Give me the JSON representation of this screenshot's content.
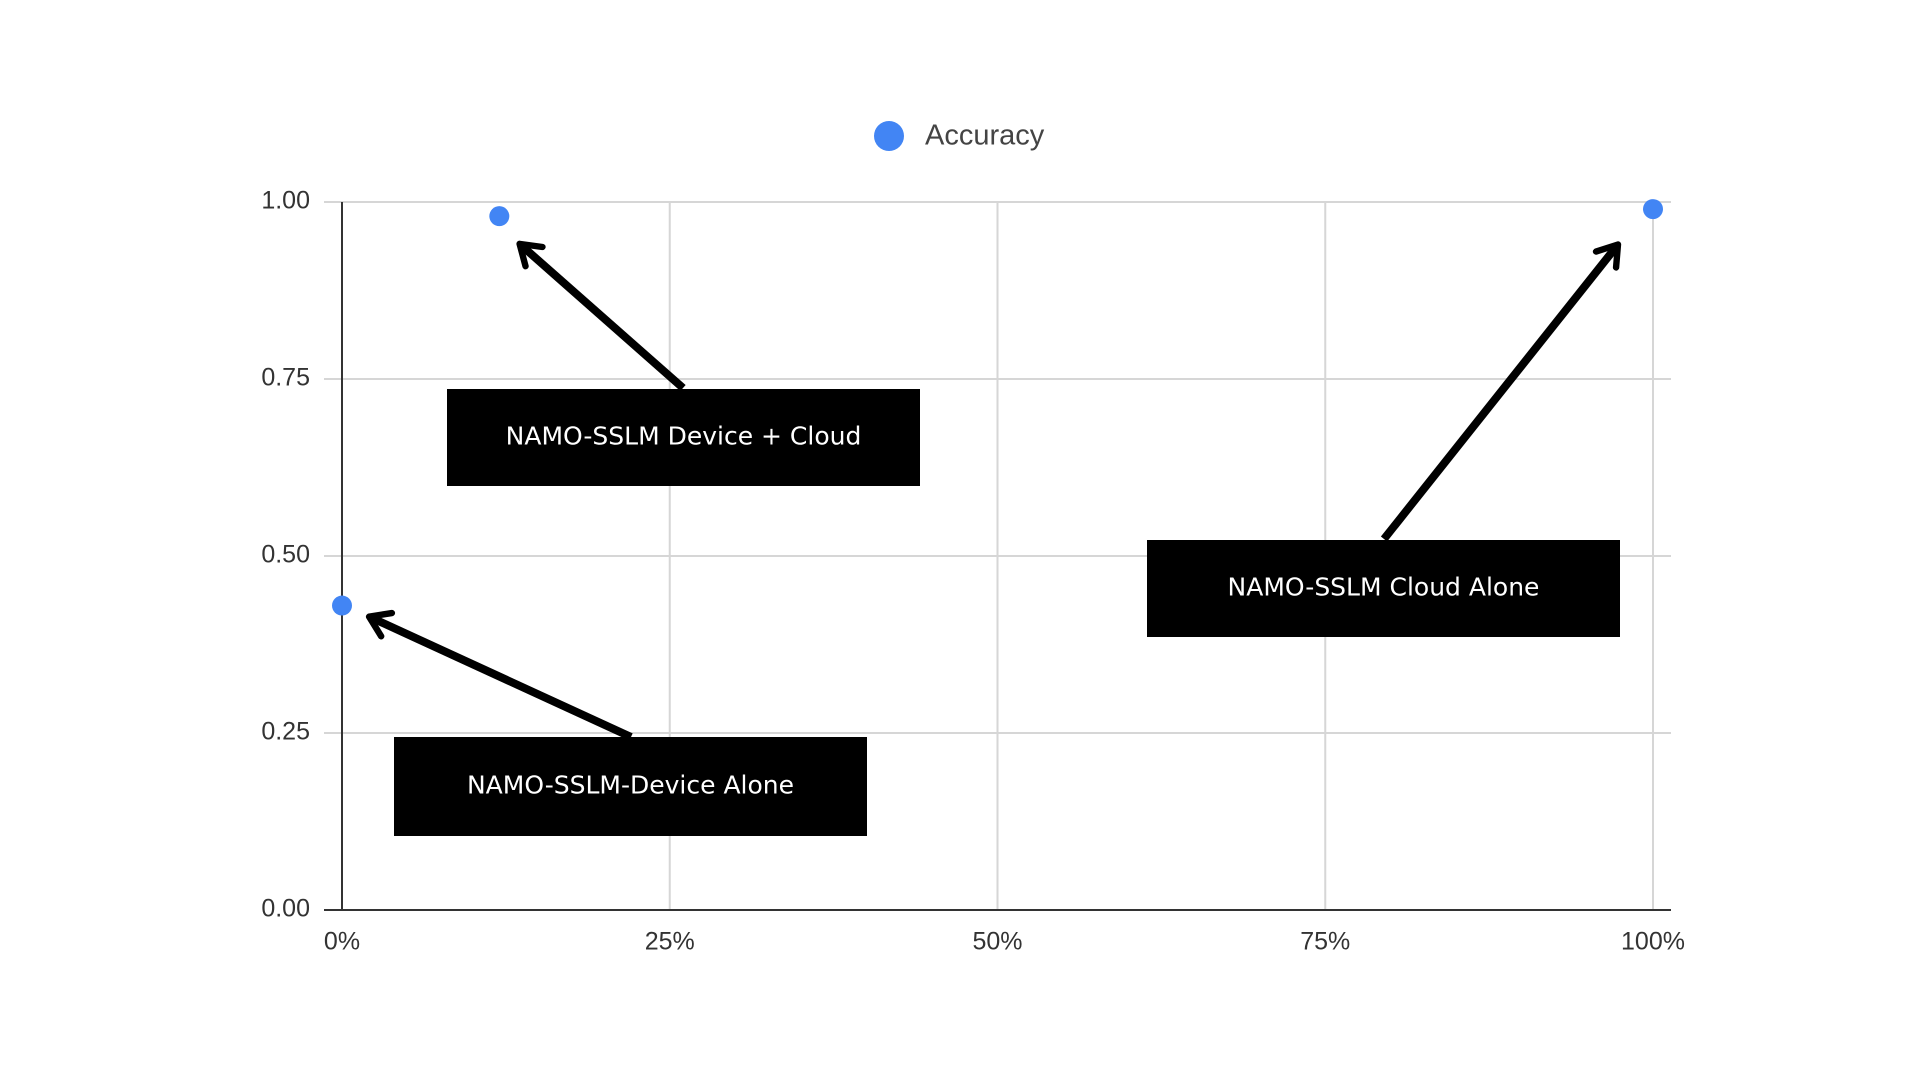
{
  "chart_data": {
    "type": "scatter",
    "x": [
      0,
      12,
      100
    ],
    "series": [
      {
        "name": "Accuracy",
        "color": "#4285f4",
        "values": [
          0.43,
          0.98,
          0.99
        ]
      }
    ],
    "xlim": [
      0,
      100
    ],
    "xticks": [
      {
        "value": 0,
        "label": "0%"
      },
      {
        "value": 25,
        "label": "25%"
      },
      {
        "value": 50,
        "label": "50%"
      },
      {
        "value": 75,
        "label": "75%"
      },
      {
        "value": 100,
        "label": "100%"
      }
    ],
    "ylim": [
      0,
      1
    ],
    "yticks": [
      {
        "value": 0,
        "label": "0.00"
      },
      {
        "value": 0.25,
        "label": "0.25"
      },
      {
        "value": 0.5,
        "label": "0.50"
      },
      {
        "value": 0.75,
        "label": "0.75"
      },
      {
        "value": 1,
        "label": "1.00"
      }
    ],
    "grid": true,
    "legend": "top",
    "annotations": [
      {
        "text": "NAMO-SSLM Device + Cloud"
      },
      {
        "text": "NAMO-SSLM Cloud Alone"
      },
      {
        "text": "NAMO-SSLM-Device Alone"
      }
    ]
  }
}
